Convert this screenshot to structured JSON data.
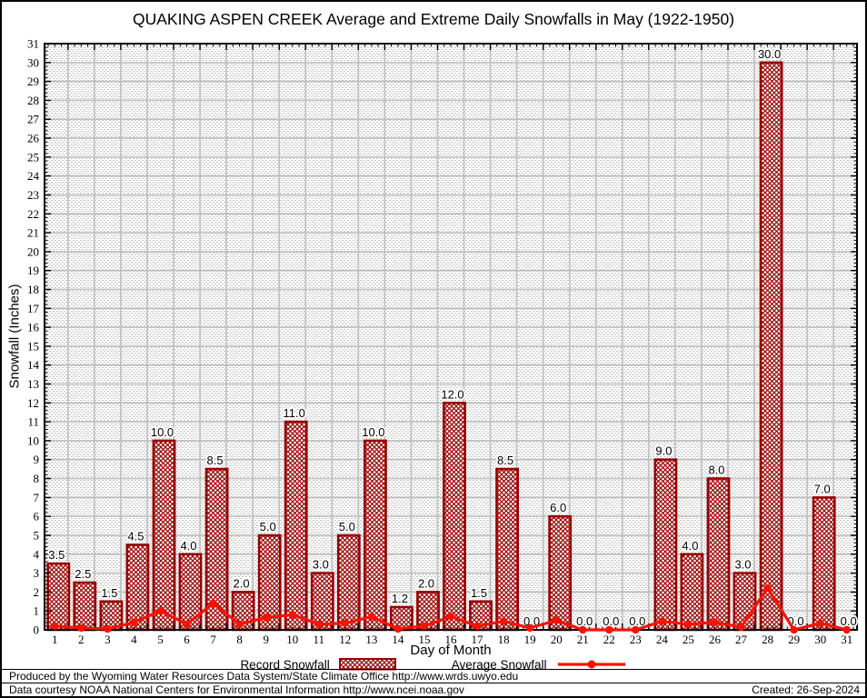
{
  "title": "QUAKING ASPEN CREEK Average and Extreme Daily Snowfalls in May (1922-1950)",
  "y_axis": {
    "label": "Snowfall (Inches)"
  },
  "x_axis": {
    "label": "Day of Month"
  },
  "legend": {
    "record_label": "Record Snowfall",
    "average_label": "Average Snowfall"
  },
  "footer": {
    "line1": "Produced by the Wyoming Water Resources Data System/State Climate Office http://www.wrds.uwyo.edu",
    "line2": "Data courtesy NOAA National Centers for Environmental Information http://www.ncei.noaa.gov",
    "created": "Created: 26-Sep-2024"
  },
  "colors": {
    "record": "#990000",
    "average": "#f81206",
    "grid": "#c0c0c0",
    "stipple": "#c2c2c2",
    "axis": "#000000"
  },
  "chart_data": {
    "type": "bar",
    "title": "QUAKING ASPEN CREEK Average and Extreme Daily Snowfalls in May (1922-1950)",
    "xlabel": "Day of Month",
    "ylabel": "Snowfall (Inches)",
    "ylim": [
      0,
      31
    ],
    "ytick_step": 1,
    "grid": true,
    "legend_position": "bottom",
    "categories": [
      1,
      2,
      3,
      4,
      5,
      6,
      7,
      8,
      9,
      10,
      11,
      12,
      13,
      14,
      15,
      16,
      17,
      18,
      19,
      20,
      21,
      22,
      23,
      24,
      25,
      26,
      27,
      28,
      29,
      30,
      31
    ],
    "series": [
      {
        "name": "Record Snowfall",
        "type": "bar",
        "values": [
          3.5,
          2.5,
          1.5,
          4.5,
          10.0,
          4.0,
          8.5,
          2.0,
          5.0,
          11.0,
          3.0,
          5.0,
          10.0,
          1.2,
          2.0,
          12.0,
          1.5,
          8.5,
          0.0,
          6.0,
          0.0,
          0.0,
          0.0,
          9.0,
          4.0,
          8.0,
          3.0,
          30.0,
          0.0,
          7.0,
          0.0
        ]
      },
      {
        "name": "Average Snowfall",
        "type": "line",
        "values": [
          0.2,
          0.1,
          0.05,
          0.4,
          1.0,
          0.3,
          1.4,
          0.3,
          0.65,
          0.8,
          0.3,
          0.35,
          0.7,
          0.05,
          0.2,
          0.7,
          0.2,
          0.45,
          0.1,
          0.5,
          0.0,
          0.0,
          0.0,
          0.45,
          0.3,
          0.4,
          0.15,
          2.2,
          0.0,
          0.35,
          0.0
        ]
      }
    ]
  }
}
